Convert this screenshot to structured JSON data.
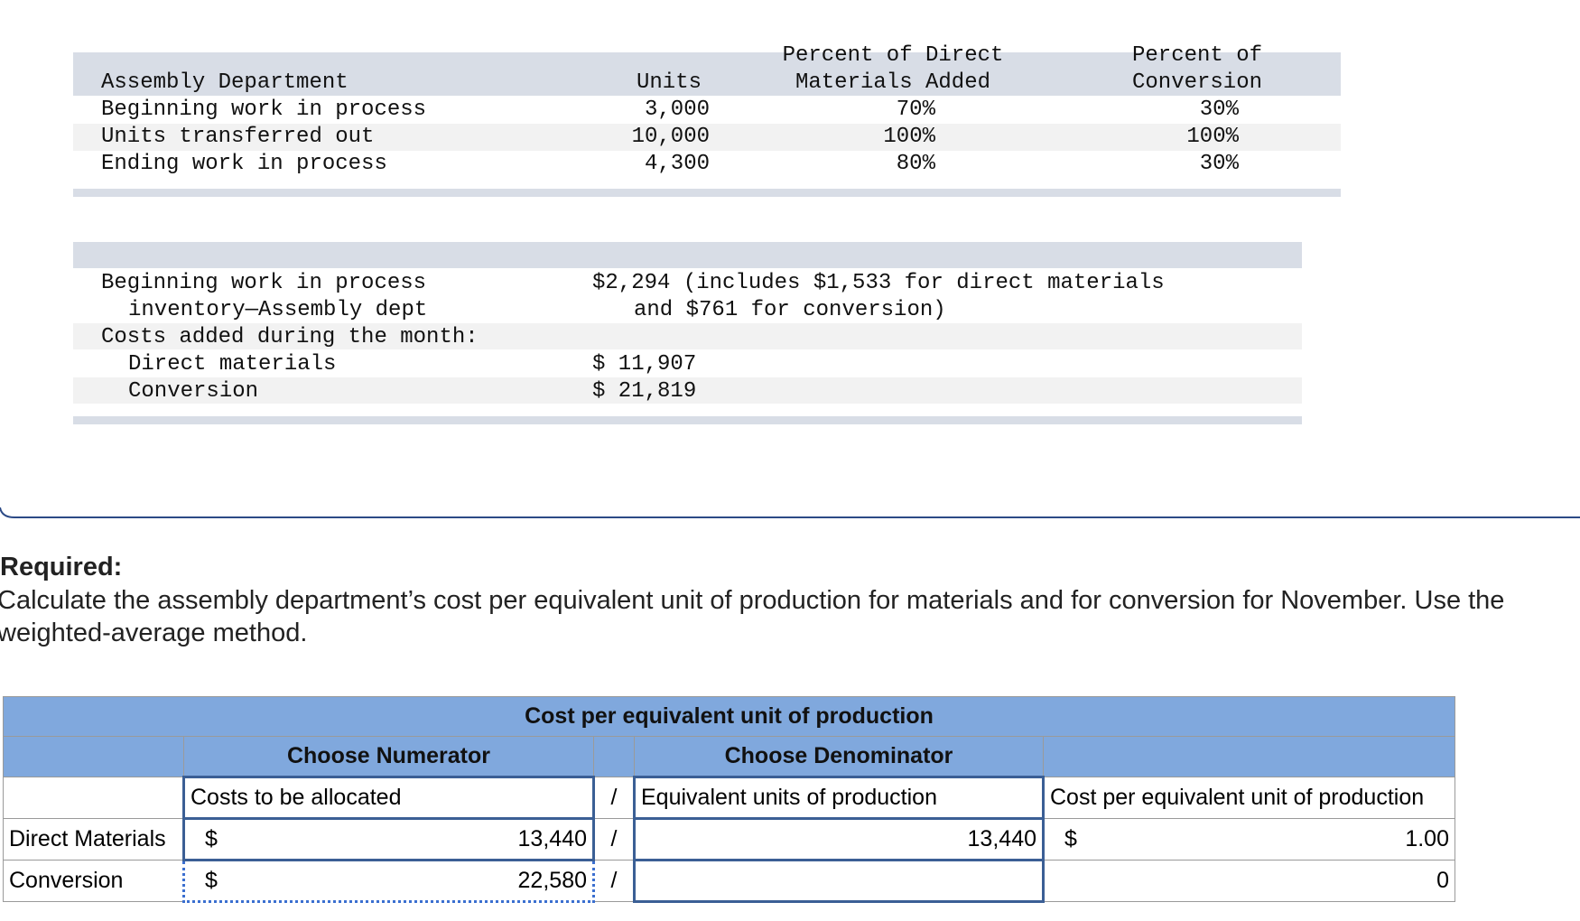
{
  "units_table": {
    "headers": [
      "Assembly Department",
      "Units",
      [
        "Percent of Direct",
        "Materials Added"
      ],
      [
        "Percent of",
        "Conversion"
      ]
    ],
    "rows": [
      [
        "Beginning work in process",
        "3,000",
        "70%",
        "30%"
      ],
      [
        "Units transferred out",
        "10,000",
        "100%",
        "100%"
      ],
      [
        "Ending work in process",
        "4,300",
        "80%",
        "30%"
      ]
    ]
  },
  "cost_table": {
    "rows": [
      {
        "label": [
          "Beginning work in process",
          "inventory—Assembly dept"
        ],
        "value": [
          "$2,294 (includes $1,533 for direct materials",
          "and $761 for conversion)"
        ]
      },
      {
        "label": [
          "Costs added during the month:"
        ]
      },
      {
        "label": [
          "Direct materials"
        ],
        "value": [
          "$ 11,907"
        ]
      },
      {
        "label": [
          "Conversion"
        ],
        "value": [
          "$ 21,819"
        ]
      }
    ]
  },
  "required": {
    "title": "Required:",
    "text": "Calculate the assembly department’s cost per equivalent unit of production for materials and for conversion for November. Use the weighted-average method."
  },
  "answer": {
    "title": "Cost per equivalent unit of production",
    "headers": [
      "Choose Numerator",
      "Choose Denominator"
    ],
    "subheaders": [
      "Costs to be allocated",
      "/",
      "Equivalent units of production",
      "Cost per equivalent unit of production"
    ],
    "rows": [
      {
        "label": "Direct Materials",
        "currency": "$",
        "numerator": "13,440",
        "slash": "/",
        "denominator": "13,440",
        "result_currency": "$",
        "result": "1.00"
      },
      {
        "label": "Conversion",
        "currency": "$",
        "numerator": "22,580",
        "slash": "/",
        "result": "0"
      }
    ]
  }
}
